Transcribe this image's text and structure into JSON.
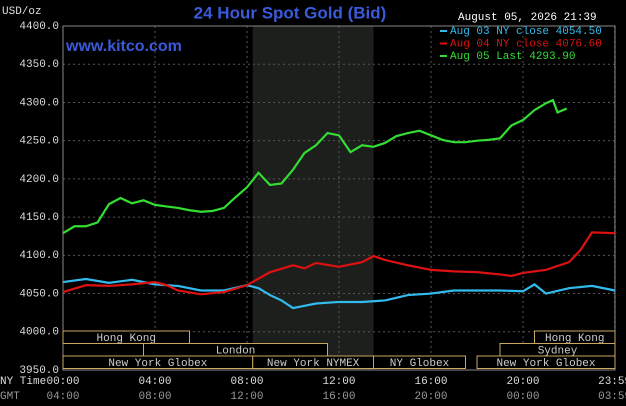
{
  "chart_data": {
    "type": "line",
    "title": "24 Hour Spot Gold (Bid)",
    "y_label": "USD/oz",
    "timestamp": "August 05, 2026 21:39",
    "website": "www.kitco.com",
    "x_row_label": "NY Time",
    "x2_row_label": "GMT",
    "xlim": [
      0,
      24
    ],
    "xticks": [
      {
        "value": 0,
        "label": "00:00"
      },
      {
        "value": 4,
        "label": "04:00"
      },
      {
        "value": 8,
        "label": "08:00"
      },
      {
        "value": 12,
        "label": "12:00"
      },
      {
        "value": 16,
        "label": "16:00"
      },
      {
        "value": 20,
        "label": "20:00"
      },
      {
        "value": 23.9833,
        "label": "23:59"
      }
    ],
    "xticks_gmt": [
      "04:00",
      "08:00",
      "12:00",
      "16:00",
      "20:00",
      "00:00",
      "03:59"
    ],
    "ylim": [
      3950,
      4400
    ],
    "yticks": [
      {
        "value": 3950,
        "label": "3950.0"
      },
      {
        "value": 4000,
        "label": "4000.0"
      },
      {
        "value": 4050,
        "label": "4050.0"
      },
      {
        "value": 4100,
        "label": "4100.0"
      },
      {
        "value": 4150,
        "label": "4150.0"
      },
      {
        "value": 4200,
        "label": "4200.0"
      },
      {
        "value": 4250,
        "label": "4250.0"
      },
      {
        "value": 4300,
        "label": "4300.0"
      },
      {
        "value": 4350,
        "label": "4350.0"
      },
      {
        "value": 4400,
        "label": "4400.0"
      }
    ],
    "grid": true,
    "shaded_range": [
      8.25,
      13.5
    ],
    "sessions": [
      {
        "name": "Hong Kong",
        "start": 0,
        "end": 5.5,
        "row": 0
      },
      {
        "name": "London",
        "start": 3.5,
        "end": 11.5,
        "row": 1
      },
      {
        "name": "New York Globex",
        "start": 0,
        "end": 8.25,
        "row": 2
      },
      {
        "name": "New York NYMEX",
        "start": 8.25,
        "end": 13.5,
        "row": 2
      },
      {
        "name": "NY Globex",
        "start": 13.5,
        "end": 17.5,
        "row": 2
      },
      {
        "name": "Hong Kong",
        "start": 20.5,
        "end": 24,
        "row": 0
      },
      {
        "name": "Sydney",
        "start": 19,
        "end": 24,
        "row": 1
      },
      {
        "name": "New York Globex",
        "start": 18,
        "end": 24,
        "row": 2
      }
    ],
    "series": [
      {
        "name": "Aug 03 NY close 4054.50",
        "color": "#33bbee",
        "x": [
          0,
          1,
          2,
          3,
          4,
          5,
          6,
          7,
          8,
          8.5,
          9,
          9.5,
          10,
          10.5,
          11,
          12,
          13,
          14,
          15,
          16,
          17,
          18,
          19,
          20,
          20.5,
          21,
          22,
          23,
          24
        ],
        "values": [
          4065,
          4069,
          4064,
          4068,
          4062,
          4060,
          4054,
          4054,
          4061,
          4057,
          4048,
          4041,
          4031,
          4034,
          4037,
          4039,
          4039,
          4041,
          4048,
          4050,
          4054,
          4054,
          4054,
          4053,
          4062,
          4050,
          4057,
          4060,
          4054
        ]
      },
      {
        "name": "Aug 04 NY close 4076.60",
        "color": "#dd1111",
        "x": [
          0,
          1,
          2,
          3,
          4,
          4.5,
          5,
          6,
          7,
          8,
          9,
          10,
          10.5,
          11,
          12,
          13,
          13.5,
          14,
          15,
          16,
          17,
          18,
          19,
          19.5,
          20,
          21,
          22,
          22.5,
          23,
          24
        ],
        "values": [
          4052,
          4061,
          4060,
          4062,
          4065,
          4061,
          4054,
          4049,
          4052,
          4061,
          4078,
          4087,
          4083,
          4090,
          4085,
          4091,
          4099,
          4094,
          4087,
          4081,
          4079,
          4078,
          4075,
          4073,
          4077,
          4081,
          4091,
          4107,
          4130,
          4129
        ]
      },
      {
        "name": "Aug 05 Last 4293.90",
        "color": "#33dd33",
        "x": [
          0,
          0.5,
          1,
          1.5,
          2,
          2.5,
          3,
          3.5,
          4,
          4.5,
          5,
          5.5,
          6,
          6.5,
          7,
          7.5,
          8,
          8.5,
          9,
          9.5,
          10,
          10.5,
          11,
          11.5,
          12,
          12.5,
          13,
          13.5,
          14,
          14.5,
          15,
          15.5,
          16,
          16.5,
          17,
          17.5,
          18,
          18.5,
          19,
          19.5,
          20,
          20.5,
          21,
          21.3,
          21.5,
          21.9
        ],
        "values": [
          4129,
          4138,
          4138,
          4143,
          4167,
          4175,
          4168,
          4172,
          4166,
          4164,
          4162,
          4159,
          4157,
          4158,
          4162,
          4176,
          4189,
          4208,
          4192,
          4194,
          4212,
          4234,
          4244,
          4260,
          4257,
          4235,
          4244,
          4242,
          4247,
          4256,
          4260,
          4263,
          4257,
          4251,
          4248,
          4248,
          4250,
          4251,
          4253,
          4270,
          4277,
          4290,
          4299,
          4303,
          4287,
          4292
        ]
      }
    ]
  }
}
